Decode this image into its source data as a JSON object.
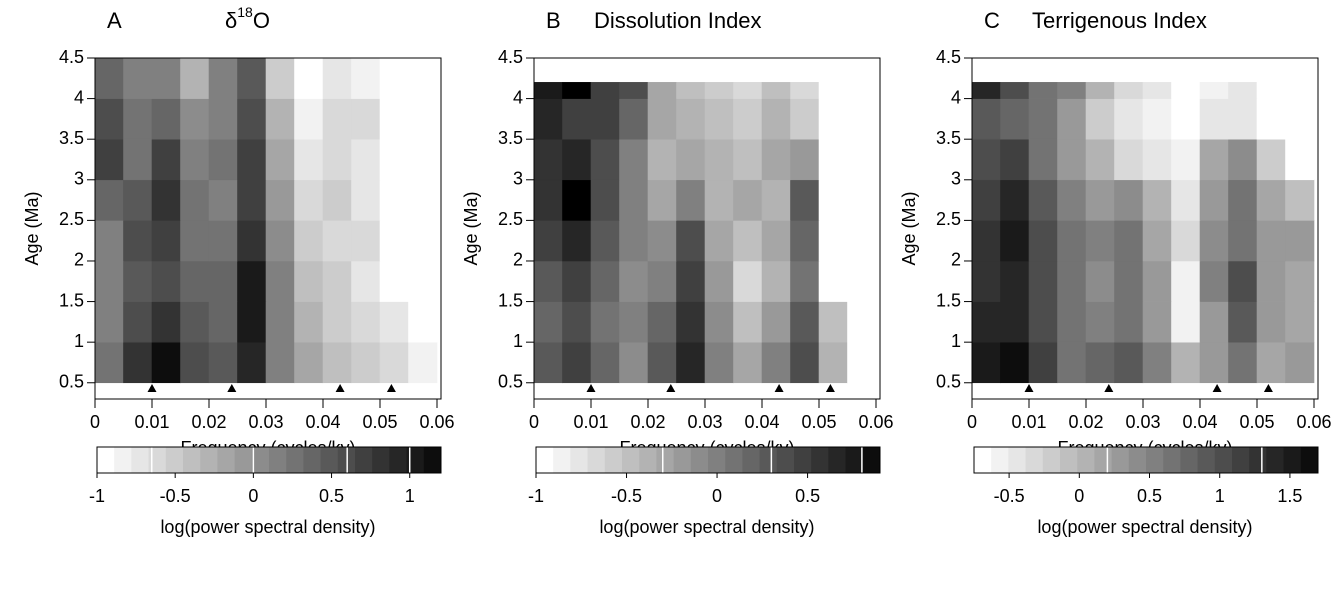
{
  "chart_data": [
    {
      "type": "heatmap",
      "label": "A",
      "title": "δ",
      "title_superscript": "18",
      "title_suffix": "O",
      "x_label": "Frequency (cycles/ky)",
      "y_label": "Age (Ma)",
      "colorbar_label": "log(power spectral density)",
      "xlim": [
        0,
        0.0607
      ],
      "xticks": [
        0,
        0.01,
        0.02,
        0.03,
        0.04,
        0.05,
        0.06
      ],
      "ylim": [
        0.3,
        4.5
      ],
      "yticks": [
        0.5,
        1,
        1.5,
        2,
        2.5,
        3,
        3.5,
        4,
        4.5
      ],
      "x_edges": [
        0,
        0.005,
        0.01,
        0.015,
        0.02,
        0.025,
        0.03,
        0.035,
        0.04,
        0.045,
        0.05,
        0.055,
        0.06
      ],
      "y_edges": [
        0.5,
        1,
        1.5,
        2,
        2.5,
        3,
        3.5,
        4,
        4.5
      ],
      "z": [
        [
          0.3,
          0.8,
          1.1,
          0.6,
          0.5,
          0.9,
          0.2,
          -0.2,
          -0.4,
          -0.5,
          -0.6,
          -0.8
        ],
        [
          0.2,
          0.6,
          0.8,
          0.5,
          0.4,
          1.0,
          0.2,
          -0.3,
          -0.5,
          -0.6,
          -0.7,
          -0.9
        ],
        [
          0.1,
          0.5,
          0.6,
          0.4,
          0.4,
          1.0,
          0.1,
          -0.4,
          -0.5,
          -0.7,
          -0.9,
          -1.1
        ],
        [
          0.2,
          0.6,
          0.7,
          0.3,
          0.3,
          0.8,
          0.0,
          -0.5,
          -0.6,
          -0.6,
          -1.1,
          -1.1
        ],
        [
          0.4,
          0.5,
          0.8,
          0.3,
          0.2,
          0.7,
          -0.1,
          -0.6,
          -0.5,
          -0.7,
          -1.1,
          -1.1
        ],
        [
          0.7,
          0.3,
          0.7,
          0.2,
          0.3,
          0.7,
          -0.2,
          -0.7,
          -0.6,
          -0.7,
          -1.1,
          -1.1
        ],
        [
          0.6,
          0.3,
          0.4,
          0.0,
          0.2,
          0.6,
          -0.3,
          -0.8,
          -0.6,
          -0.6,
          -1.1,
          -1.1
        ],
        [
          0.4,
          0.2,
          0.1,
          -0.3,
          0.1,
          0.5,
          -0.5,
          -0.9,
          -0.7,
          -0.8,
          -1.1,
          -1.1
        ]
      ],
      "markers_x": [
        0.01,
        0.024,
        0.043,
        0.052
      ],
      "clim": [
        -1,
        1.2
      ],
      "colorbar_ticks": [
        -1,
        -0.5,
        0,
        0.5,
        1
      ],
      "contours": [
        -0.65,
        0,
        0.6,
        1
      ],
      "colormap": [
        "#ffffff",
        "#000000"
      ]
    },
    {
      "type": "heatmap",
      "label": "B",
      "title": "Dissolution Index",
      "x_label": "Frequency (cycles/ky)",
      "y_label": "Age (Ma)",
      "colorbar_label": "log(power spectral density)",
      "xlim": [
        0,
        0.0607
      ],
      "xticks": [
        0,
        0.01,
        0.02,
        0.03,
        0.04,
        0.05,
        0.06
      ],
      "ylim": [
        0.3,
        4.5
      ],
      "yticks": [
        0.5,
        1,
        1.5,
        2,
        2.5,
        3,
        3.5,
        4,
        4.5
      ],
      "x_edges": [
        0,
        0.005,
        0.01,
        0.015,
        0.02,
        0.025,
        0.03,
        0.035,
        0.04,
        0.045,
        0.05,
        0.055,
        0.06
      ],
      "y_edges": [
        0.5,
        1,
        1.5,
        2,
        2.5,
        3,
        3.5,
        4,
        4.2
      ],
      "z": [
        [
          0.3,
          0.5,
          0.2,
          -0.1,
          0.3,
          0.7,
          0.0,
          -0.3,
          0.0,
          0.4,
          -0.4,
          -1.1
        ],
        [
          0.2,
          0.4,
          0.1,
          0.0,
          0.2,
          0.6,
          -0.1,
          -0.5,
          -0.2,
          0.3,
          -0.5,
          -1.1
        ],
        [
          0.3,
          0.5,
          0.2,
          -0.1,
          0.0,
          0.5,
          -0.2,
          -0.7,
          -0.4,
          0.1,
          -1.1,
          -1.1
        ],
        [
          0.5,
          0.7,
          0.3,
          0.0,
          -0.1,
          0.4,
          -0.3,
          -0.5,
          -0.3,
          0.2,
          -1.1,
          -1.1
        ],
        [
          0.6,
          0.9,
          0.4,
          0.0,
          -0.3,
          0.0,
          -0.4,
          -0.3,
          -0.4,
          0.3,
          -1.1,
          -1.1
        ],
        [
          0.6,
          0.7,
          0.4,
          0.0,
          -0.4,
          -0.3,
          -0.4,
          -0.5,
          -0.3,
          -0.2,
          -1.1,
          -1.1
        ],
        [
          0.7,
          0.5,
          0.5,
          0.2,
          -0.3,
          -0.4,
          -0.5,
          -0.6,
          -0.4,
          -0.6,
          -1.1,
          -1.1
        ],
        [
          0.8,
          0.9,
          0.5,
          0.4,
          -0.3,
          -0.5,
          -0.6,
          -0.7,
          -0.5,
          -0.7,
          -1.1,
          -1.1
        ]
      ],
      "markers_x": [
        0.01,
        0.024,
        0.043,
        0.052
      ],
      "clim": [
        -1,
        0.9
      ],
      "colorbar_ticks": [
        -1,
        -0.5,
        0,
        0.5
      ],
      "contours": [
        -0.3,
        0.3,
        0.8
      ],
      "colormap": [
        "#ffffff",
        "#000000"
      ]
    },
    {
      "type": "heatmap",
      "label": "C",
      "title": "Terrigenous Index",
      "x_label": "Frequency (cycles/ky)",
      "y_label": "Age (Ma)",
      "colorbar_label": "log(power spectral density)",
      "xlim": [
        0,
        0.0607
      ],
      "xticks": [
        0,
        0.01,
        0.02,
        0.03,
        0.04,
        0.05,
        0.06
      ],
      "ylim": [
        0.3,
        4.5
      ],
      "yticks": [
        0.5,
        1,
        1.5,
        2,
        2.5,
        3,
        3.5,
        4,
        4.5
      ],
      "x_edges": [
        0,
        0.005,
        0.01,
        0.015,
        0.02,
        0.025,
        0.03,
        0.035,
        0.04,
        0.045,
        0.05,
        0.055,
        0.06
      ],
      "y_edges": [
        0.5,
        1,
        1.5,
        2,
        2.5,
        3,
        3.5,
        4,
        4.2
      ],
      "z": [
        [
          1.5,
          1.6,
          1.2,
          0.6,
          0.8,
          0.9,
          0.5,
          0.1,
          0.3,
          0.6,
          0.2,
          0.3
        ],
        [
          1.4,
          1.4,
          1.0,
          0.6,
          0.5,
          0.7,
          0.3,
          -0.6,
          0.3,
          0.9,
          0.3,
          0.2
        ],
        [
          1.3,
          1.4,
          1.0,
          0.6,
          0.4,
          0.6,
          0.3,
          -0.6,
          0.5,
          1.0,
          0.3,
          0.2
        ],
        [
          1.3,
          1.5,
          1.0,
          0.6,
          0.5,
          0.6,
          0.2,
          -0.3,
          0.4,
          0.7,
          0.3,
          0.3
        ],
        [
          1.2,
          1.4,
          0.9,
          0.5,
          0.3,
          0.4,
          0.0,
          -0.4,
          0.3,
          0.7,
          0.2,
          -0.1
        ],
        [
          1.0,
          1.1,
          0.7,
          0.3,
          0.0,
          -0.3,
          -0.5,
          -0.6,
          0.2,
          0.4,
          -0.2,
          -0.8
        ],
        [
          0.9,
          0.8,
          0.6,
          0.3,
          -0.2,
          -0.4,
          -0.6,
          -0.8,
          -0.4,
          -0.5,
          -0.8,
          -0.8
        ],
        [
          1.4,
          1.0,
          0.7,
          0.5,
          0.0,
          -0.3,
          -0.5,
          -0.8,
          -0.6,
          -0.5,
          -0.8,
          -0.8
        ]
      ],
      "markers_x": [
        0.01,
        0.024,
        0.043,
        0.052
      ],
      "clim": [
        -0.75,
        1.7
      ],
      "colorbar_ticks": [
        -0.5,
        0,
        0.5,
        1,
        1.5
      ],
      "contours": [
        0.2,
        1.3
      ],
      "colormap": [
        "#ffffff",
        "#000000"
      ]
    }
  ]
}
